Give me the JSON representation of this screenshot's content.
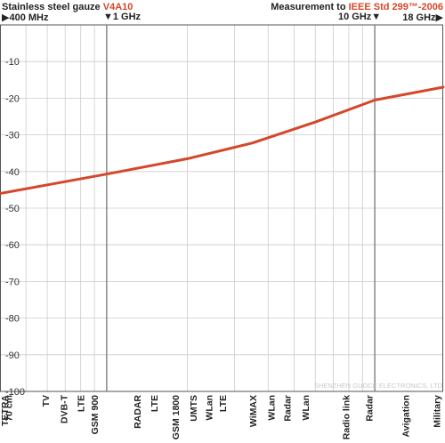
{
  "header": {
    "left_title": "Stainless steel gauze",
    "left_title_accent": "V4A10",
    "right_title": "Measurement to",
    "right_title_accent": "IEEE Std 299™-2006",
    "freq_400": "▶400 MHz",
    "freq_1g": "▼1 GHz",
    "freq_10g": "10 GHz▼",
    "freq_18g": "18 GHz▶"
  },
  "watermark": "SHENZHEN GUOCE ELECTRONICS, LTD",
  "colors": {
    "line": "#d4472a",
    "accent": "#d4472a",
    "grid": "#cccccc",
    "frame": "#555555"
  },
  "chart_data": {
    "type": "line",
    "xscale": "log",
    "xlim_mhz": [
      400,
      18000
    ],
    "ylim": [
      -100,
      0
    ],
    "yticks": [
      -10,
      -20,
      -30,
      -40,
      -50,
      -60,
      -70,
      -80,
      -90,
      -100
    ],
    "series": [
      {
        "x_mhz": [
          400,
          1000,
          2000,
          3500,
          6000,
          10000,
          18000
        ],
        "values": [
          -46,
          -40.7,
          -36.5,
          -32.2,
          -26.5,
          -20.5,
          -17
        ]
      }
    ],
    "marker_lines_mhz": [
      1000,
      10000
    ],
    "bottom_labels": [
      {
        "text": "TETRA",
        "f": 400
      },
      {
        "text": "70 cm",
        "f": 430
      },
      {
        "text": "TV",
        "f": 590
      },
      {
        "text": "DVB-T",
        "f": 690
      },
      {
        "text": "LTE",
        "f": 800
      },
      {
        "text": "GSM 900",
        "f": 900
      },
      {
        "text": "RADAR",
        "f": 1300
      },
      {
        "text": "LTE",
        "f": 1500
      },
      {
        "text": "GSM 1800",
        "f": 1800
      },
      {
        "text": "UMTS",
        "f": 2100
      },
      {
        "text": "WLan",
        "f": 2400
      },
      {
        "text": "LTE",
        "f": 2700
      },
      {
        "text": "WiMAX",
        "f": 3500
      },
      {
        "text": "WLan",
        "f": 4100
      },
      {
        "text": "Radar",
        "f": 4700
      },
      {
        "text": "WLan",
        "f": 5500
      },
      {
        "text": "Radio link",
        "f": 7800
      },
      {
        "text": "Radar",
        "f": 9500
      },
      {
        "text": "Avigation",
        "f": 13000
      },
      {
        "text": "Military",
        "f": 17000
      }
    ]
  }
}
